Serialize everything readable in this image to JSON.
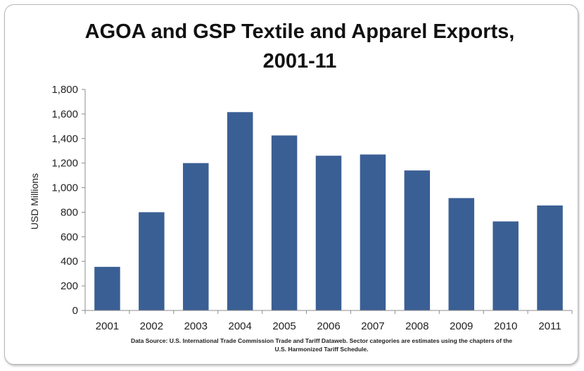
{
  "chart_data": {
    "type": "bar",
    "title_lines": [
      "AGOA and GSP Textile and Apparel Exports,",
      "2001-11"
    ],
    "xlabel": "",
    "ylabel": "USD Millions",
    "categories": [
      "2001",
      "2002",
      "2003",
      "2004",
      "2005",
      "2006",
      "2007",
      "2008",
      "2009",
      "2010",
      "2011"
    ],
    "values": [
      355,
      800,
      1200,
      1615,
      1425,
      1260,
      1270,
      1140,
      915,
      725,
      855
    ],
    "ylim": [
      0,
      1800
    ],
    "yticks": [
      0,
      200,
      400,
      600,
      800,
      1000,
      1200,
      1400,
      1600,
      1800
    ],
    "ytick_labels": [
      "0",
      "200",
      "400",
      "600",
      "800",
      "1,000",
      "1,200",
      "1,400",
      "1,600",
      "1,800"
    ],
    "grid": false,
    "legend": "none",
    "bar_color": "#3A5F94",
    "source_note_lines": [
      "Data Source: U.S. International Trade Commission Trade and Tariff Dataweb. Sector categories  are estimates using the chapters  of the",
      "U.S. Harmonized Tariff Schedule."
    ]
  }
}
